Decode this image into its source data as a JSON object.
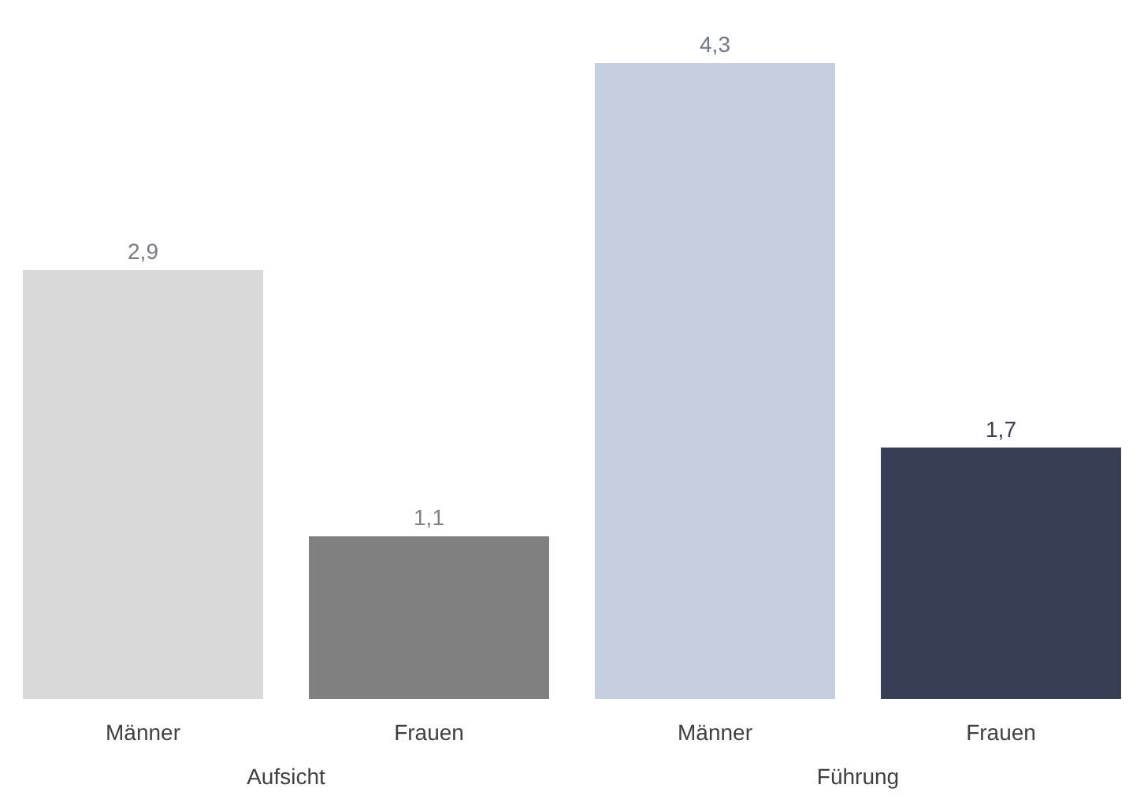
{
  "chart_data": {
    "type": "bar",
    "categories": [
      "Männer",
      "Frauen",
      "Männer",
      "Frauen"
    ],
    "values": [
      2.9,
      1.1,
      4.3,
      1.7
    ],
    "colors": [
      "#d9d9d9",
      "#808080",
      "#c5cfe0",
      "#373f55"
    ],
    "value_labels": [
      "2,9",
      "1,1",
      "4,3",
      "1,7"
    ],
    "annotations": [
      "Aufsicht",
      "Führung"
    ]
  }
}
